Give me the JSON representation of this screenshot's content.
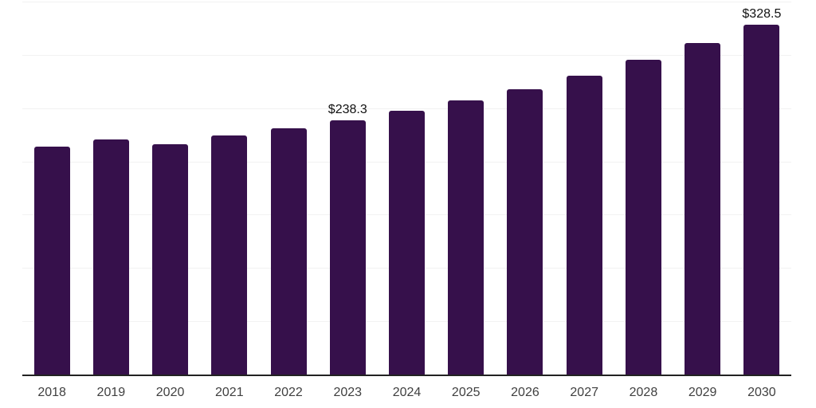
{
  "chart_data": {
    "type": "bar",
    "title": "",
    "xlabel": "",
    "ylabel": "",
    "categories": [
      "2018",
      "2019",
      "2020",
      "2021",
      "2022",
      "2023",
      "2024",
      "2025",
      "2026",
      "2027",
      "2028",
      "2029",
      "2030"
    ],
    "values": [
      213.7,
      220.4,
      216.0,
      224.1,
      230.8,
      238.3,
      247.2,
      257.6,
      268.1,
      280.7,
      295.6,
      311.3,
      328.5
    ],
    "value_labels": {
      "2023": "$238.3",
      "2030": "$328.5"
    },
    "value_prefix": "$",
    "ylim": [
      0,
      350
    ],
    "gridline_step": 50,
    "grid": true,
    "legend": "none",
    "colors": {
      "bar": "#36104B",
      "axis_line": "#222222",
      "gridline": "#f2f2f2",
      "tick_label": "#404040",
      "value_label": "#111111",
      "background": "#ffffff"
    }
  }
}
